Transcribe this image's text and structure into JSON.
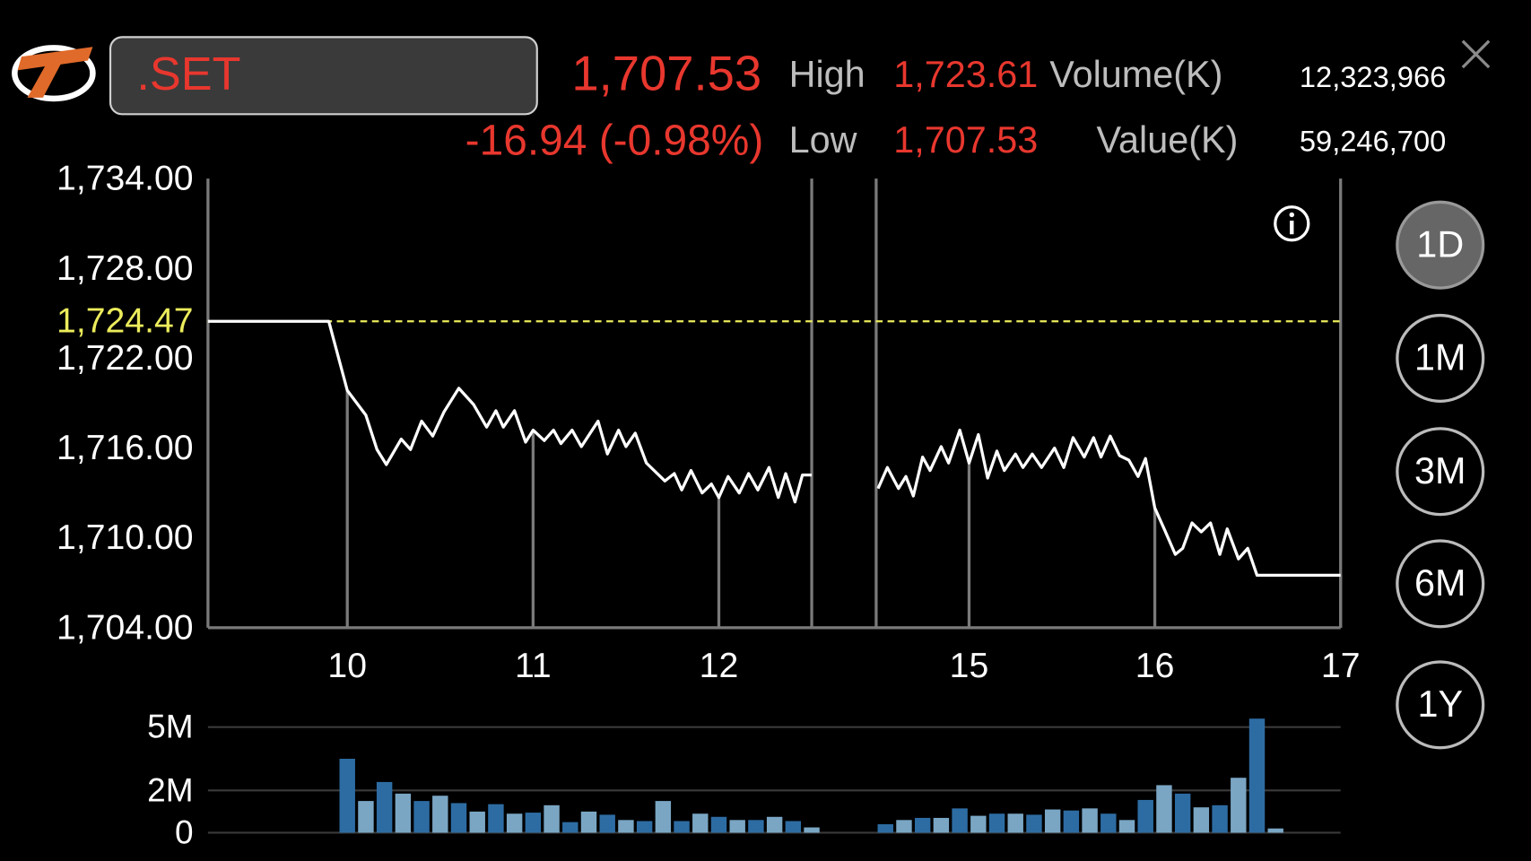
{
  "header": {
    "symbol": ".SET",
    "price": "1,707.53",
    "change": "-16.94 (-0.98%)",
    "high_label": "High",
    "high": "1,723.61",
    "low_label": "Low",
    "low": "1,707.53",
    "volume_label": "Volume(K)",
    "volume": "12,323,966",
    "value_label": "Value(K)",
    "value": "59,246,700"
  },
  "periods": {
    "options": [
      "1D",
      "1M",
      "3M",
      "6M",
      "1Y"
    ],
    "selected": "1D"
  },
  "chart_data": [
    {
      "type": "line",
      "color": "#ffffff",
      "x": [
        9.25,
        9.9,
        10.0,
        10.1,
        10.16,
        10.21,
        10.29,
        10.34,
        10.4,
        10.46,
        10.52,
        10.6,
        10.68,
        10.75,
        10.8,
        10.84,
        10.9,
        10.96,
        11.0,
        11.06,
        11.11,
        11.15,
        11.21,
        11.26,
        11.35,
        11.4,
        11.46,
        11.5,
        11.55,
        11.61,
        11.71,
        11.76,
        11.8,
        11.85,
        11.91,
        11.96,
        12.0,
        12.05,
        12.11,
        12.16,
        12.21,
        12.27,
        12.32,
        12.36,
        12.41,
        12.45,
        12.5,
        null,
        14.51,
        14.56,
        14.62,
        14.66,
        14.7,
        14.75,
        14.79,
        14.85,
        14.89,
        14.95,
        15.0,
        15.05,
        15.1,
        15.15,
        15.19,
        15.25,
        15.29,
        15.34,
        15.39,
        15.46,
        15.51,
        15.56,
        15.62,
        15.67,
        15.71,
        15.76,
        15.81,
        15.86,
        15.91,
        15.95,
        16.0,
        16.05,
        16.11,
        16.15,
        16.2,
        16.25,
        16.3,
        16.35,
        16.39,
        16.45,
        16.5,
        16.55,
        17.0
      ],
      "values": [
        1724.47,
        1724.47,
        1719.85,
        1718.2,
        1715.9,
        1714.9,
        1716.6,
        1715.9,
        1717.8,
        1716.8,
        1718.4,
        1720.0,
        1718.9,
        1717.4,
        1718.5,
        1717.4,
        1718.5,
        1716.4,
        1717.2,
        1716.5,
        1717.2,
        1716.3,
        1717.2,
        1716.1,
        1717.8,
        1715.6,
        1717.2,
        1716.1,
        1717.0,
        1715.0,
        1713.8,
        1714.3,
        1713.2,
        1714.5,
        1713.0,
        1713.6,
        1712.7,
        1714.1,
        1713.0,
        1714.3,
        1713.2,
        1714.7,
        1712.7,
        1714.3,
        1712.4,
        1714.2,
        1714.2,
        null,
        1713.3,
        1714.7,
        1713.3,
        1714.1,
        1712.8,
        1715.4,
        1714.5,
        1716.1,
        1715.0,
        1717.2,
        1715.0,
        1716.9,
        1714.0,
        1715.8,
        1714.5,
        1715.6,
        1714.7,
        1715.6,
        1714.7,
        1716.0,
        1714.7,
        1716.7,
        1715.4,
        1716.7,
        1715.4,
        1716.8,
        1715.5,
        1715.2,
        1714.1,
        1715.3,
        1712.0,
        1710.6,
        1708.9,
        1709.3,
        1711.0,
        1710.4,
        1711.0,
        1708.9,
        1710.6,
        1708.6,
        1709.3,
        1707.5,
        1707.5
      ],
      "xlim": [
        9.25,
        17
      ],
      "xticks": [
        10,
        11,
        12,
        15,
        16,
        17
      ],
      "breaks": [
        [
          12.5,
          14.5
        ]
      ],
      "ylim": [
        1704,
        1734
      ],
      "yticks": [
        {
          "value": 1704,
          "label": "1,704.00"
        },
        {
          "value": 1710,
          "label": "1,710.00"
        },
        {
          "value": 1716,
          "label": "1,716.00"
        },
        {
          "value": 1722,
          "label": "1,722.00"
        },
        {
          "value": 1728,
          "label": "1,728.00"
        },
        {
          "value": 1734,
          "label": "1,734.00"
        }
      ],
      "reference": {
        "value": 1724.47,
        "label": "1,724.47",
        "color": "#ecec5c"
      }
    },
    {
      "type": "bar",
      "colors": [
        "#2d6ca3",
        "#7aa6c4"
      ],
      "x": [
        10.0,
        10.1,
        10.2,
        10.3,
        10.4,
        10.5,
        10.6,
        10.7,
        10.8,
        10.9,
        11.0,
        11.1,
        11.2,
        11.3,
        11.4,
        11.5,
        11.6,
        11.7,
        11.8,
        11.9,
        12.0,
        12.1,
        12.2,
        12.3,
        12.4,
        12.5,
        14.55,
        14.65,
        14.75,
        14.85,
        14.95,
        15.05,
        15.15,
        15.25,
        15.35,
        15.45,
        15.55,
        15.65,
        15.75,
        15.85,
        15.95,
        16.05,
        16.15,
        16.25,
        16.35,
        16.45,
        16.55,
        16.65
      ],
      "values": [
        3500000,
        1500000,
        2400000,
        1850000,
        1500000,
        1750000,
        1400000,
        1000000,
        1350000,
        900000,
        950000,
        1300000,
        500000,
        1000000,
        850000,
        600000,
        550000,
        1500000,
        550000,
        900000,
        750000,
        600000,
        600000,
        750000,
        550000,
        250000,
        400000,
        600000,
        700000,
        700000,
        1150000,
        800000,
        900000,
        900000,
        850000,
        1100000,
        1050000,
        1150000,
        900000,
        600000,
        1550000,
        2250000,
        1850000,
        1200000,
        1300000,
        2600000,
        5400000,
        200000
      ],
      "xlim": [
        9.25,
        17
      ],
      "breaks": [
        [
          12.5,
          14.5
        ]
      ],
      "ylim": [
        0,
        5500000
      ],
      "yticks": [
        0,
        {
          "value": 2000000,
          "label": "2M"
        },
        {
          "value": 5000000,
          "label": "5M"
        }
      ]
    }
  ]
}
